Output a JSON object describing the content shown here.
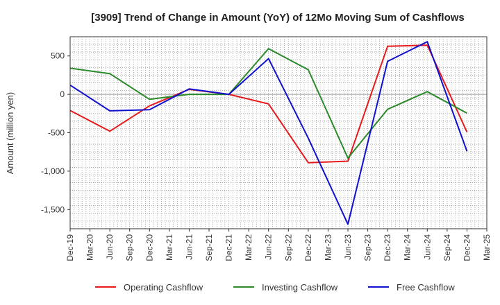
{
  "chart_data": {
    "type": "line",
    "title": "[3909]  Trend of Change in Amount (YoY) of 12Mo Moving Sum of Cashflows",
    "xlabel": "",
    "ylabel": "Amount (million yen)",
    "ylim": [
      -1750,
      750
    ],
    "yticks": [
      500,
      0,
      -500,
      -1000,
      -1500
    ],
    "ytick_labels": [
      "500",
      "0",
      "-500",
      "-1,000",
      "-1,500"
    ],
    "categories": [
      "Dec-19",
      "Mar-20",
      "Jun-20",
      "Sep-20",
      "Dec-20",
      "Mar-21",
      "Jun-21",
      "Sep-21",
      "Dec-21",
      "Mar-22",
      "Jun-22",
      "Sep-22",
      "Dec-22",
      "Mar-23",
      "Jun-23",
      "Sep-23",
      "Dec-23",
      "Mar-24",
      "Jun-24",
      "Sep-24",
      "Dec-24",
      "Mar-25"
    ],
    "grid": true,
    "legend_position": "bottom",
    "series": [
      {
        "name": "Operating Cashflow",
        "color": "#e8191a",
        "values": [
          -210,
          null,
          -480,
          null,
          -150,
          null,
          65,
          null,
          0,
          null,
          -125,
          null,
          -890,
          null,
          -870,
          null,
          625,
          null,
          640,
          null,
          -490,
          null
        ]
      },
      {
        "name": "Investing Cashflow",
        "color": "#2a8a2a",
        "values": [
          340,
          null,
          270,
          null,
          -65,
          null,
          0,
          null,
          0,
          null,
          595,
          null,
          320,
          null,
          -830,
          null,
          -195,
          null,
          35,
          null,
          -245,
          null
        ]
      },
      {
        "name": "Free Cashflow",
        "color": "#1010d0",
        "values": [
          120,
          null,
          -215,
          null,
          -200,
          null,
          70,
          null,
          0,
          null,
          465,
          null,
          -570,
          null,
          -1690,
          null,
          430,
          null,
          685,
          null,
          -740,
          null
        ]
      }
    ]
  }
}
